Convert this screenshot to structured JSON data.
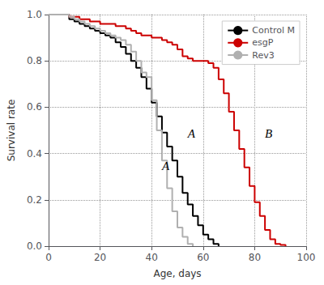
{
  "chart_data": {
    "type": "step",
    "xlabel": "Age, days",
    "ylabel": "Survival rate",
    "xlim": [
      0,
      100
    ],
    "ylim": [
      0,
      1.0
    ],
    "xticks": [
      0,
      20,
      40,
      60,
      80,
      100
    ],
    "yticks": [
      {
        "value": 0,
        "label": "0.0"
      },
      0.2,
      0.4,
      0.6,
      0.8,
      {
        "value": 1.0,
        "label": "1.0"
      }
    ],
    "grid": true,
    "legend": "upper right",
    "annotations": [
      {
        "x": 54,
        "y": 0.46,
        "text": "A"
      },
      {
        "x": 44,
        "y": 0.32,
        "text": "A"
      },
      {
        "x": 84,
        "y": 0.46,
        "text": "B"
      }
    ],
    "series": [
      {
        "name": "Control M",
        "color": "#000000",
        "x": [
          0,
          8,
          10,
          12,
          14,
          16,
          18,
          20,
          22,
          24,
          26,
          28,
          30,
          32,
          34,
          36,
          38,
          40,
          42,
          44,
          46,
          48,
          50,
          52,
          54,
          56,
          58,
          60,
          62,
          64,
          66
        ],
        "values": [
          1.0,
          0.98,
          0.97,
          0.96,
          0.95,
          0.94,
          0.93,
          0.92,
          0.91,
          0.9,
          0.88,
          0.86,
          0.83,
          0.8,
          0.77,
          0.73,
          0.68,
          0.62,
          0.56,
          0.49,
          0.43,
          0.37,
          0.3,
          0.23,
          0.18,
          0.13,
          0.09,
          0.05,
          0.03,
          0.01,
          0.0
        ]
      },
      {
        "name": "esgP",
        "color": "#cc0000",
        "x": [
          0,
          8,
          10,
          12,
          14,
          16,
          18,
          20,
          22,
          24,
          26,
          28,
          30,
          32,
          34,
          36,
          38,
          40,
          42,
          44,
          46,
          48,
          50,
          52,
          54,
          56,
          58,
          60,
          62,
          64,
          66,
          68,
          70,
          72,
          74,
          76,
          78,
          80,
          82,
          84,
          86,
          88,
          90,
          92
        ],
        "values": [
          1.0,
          0.99,
          0.99,
          0.98,
          0.98,
          0.97,
          0.97,
          0.96,
          0.96,
          0.96,
          0.95,
          0.95,
          0.94,
          0.93,
          0.92,
          0.91,
          0.91,
          0.9,
          0.9,
          0.89,
          0.88,
          0.87,
          0.85,
          0.82,
          0.81,
          0.8,
          0.8,
          0.8,
          0.79,
          0.77,
          0.72,
          0.66,
          0.58,
          0.5,
          0.42,
          0.34,
          0.26,
          0.19,
          0.13,
          0.07,
          0.03,
          0.01,
          0.005,
          0.0
        ]
      },
      {
        "name": "Rev3",
        "color": "#b0b0b0",
        "x": [
          0,
          8,
          10,
          12,
          14,
          16,
          18,
          20,
          22,
          24,
          26,
          28,
          30,
          32,
          34,
          36,
          38,
          40,
          42,
          44,
          46,
          48,
          50,
          52,
          54,
          56
        ],
        "values": [
          1.0,
          0.99,
          0.98,
          0.97,
          0.96,
          0.95,
          0.94,
          0.93,
          0.92,
          0.91,
          0.9,
          0.89,
          0.87,
          0.84,
          0.8,
          0.75,
          0.73,
          0.63,
          0.5,
          0.37,
          0.25,
          0.15,
          0.08,
          0.04,
          0.01,
          0.0
        ]
      }
    ]
  }
}
